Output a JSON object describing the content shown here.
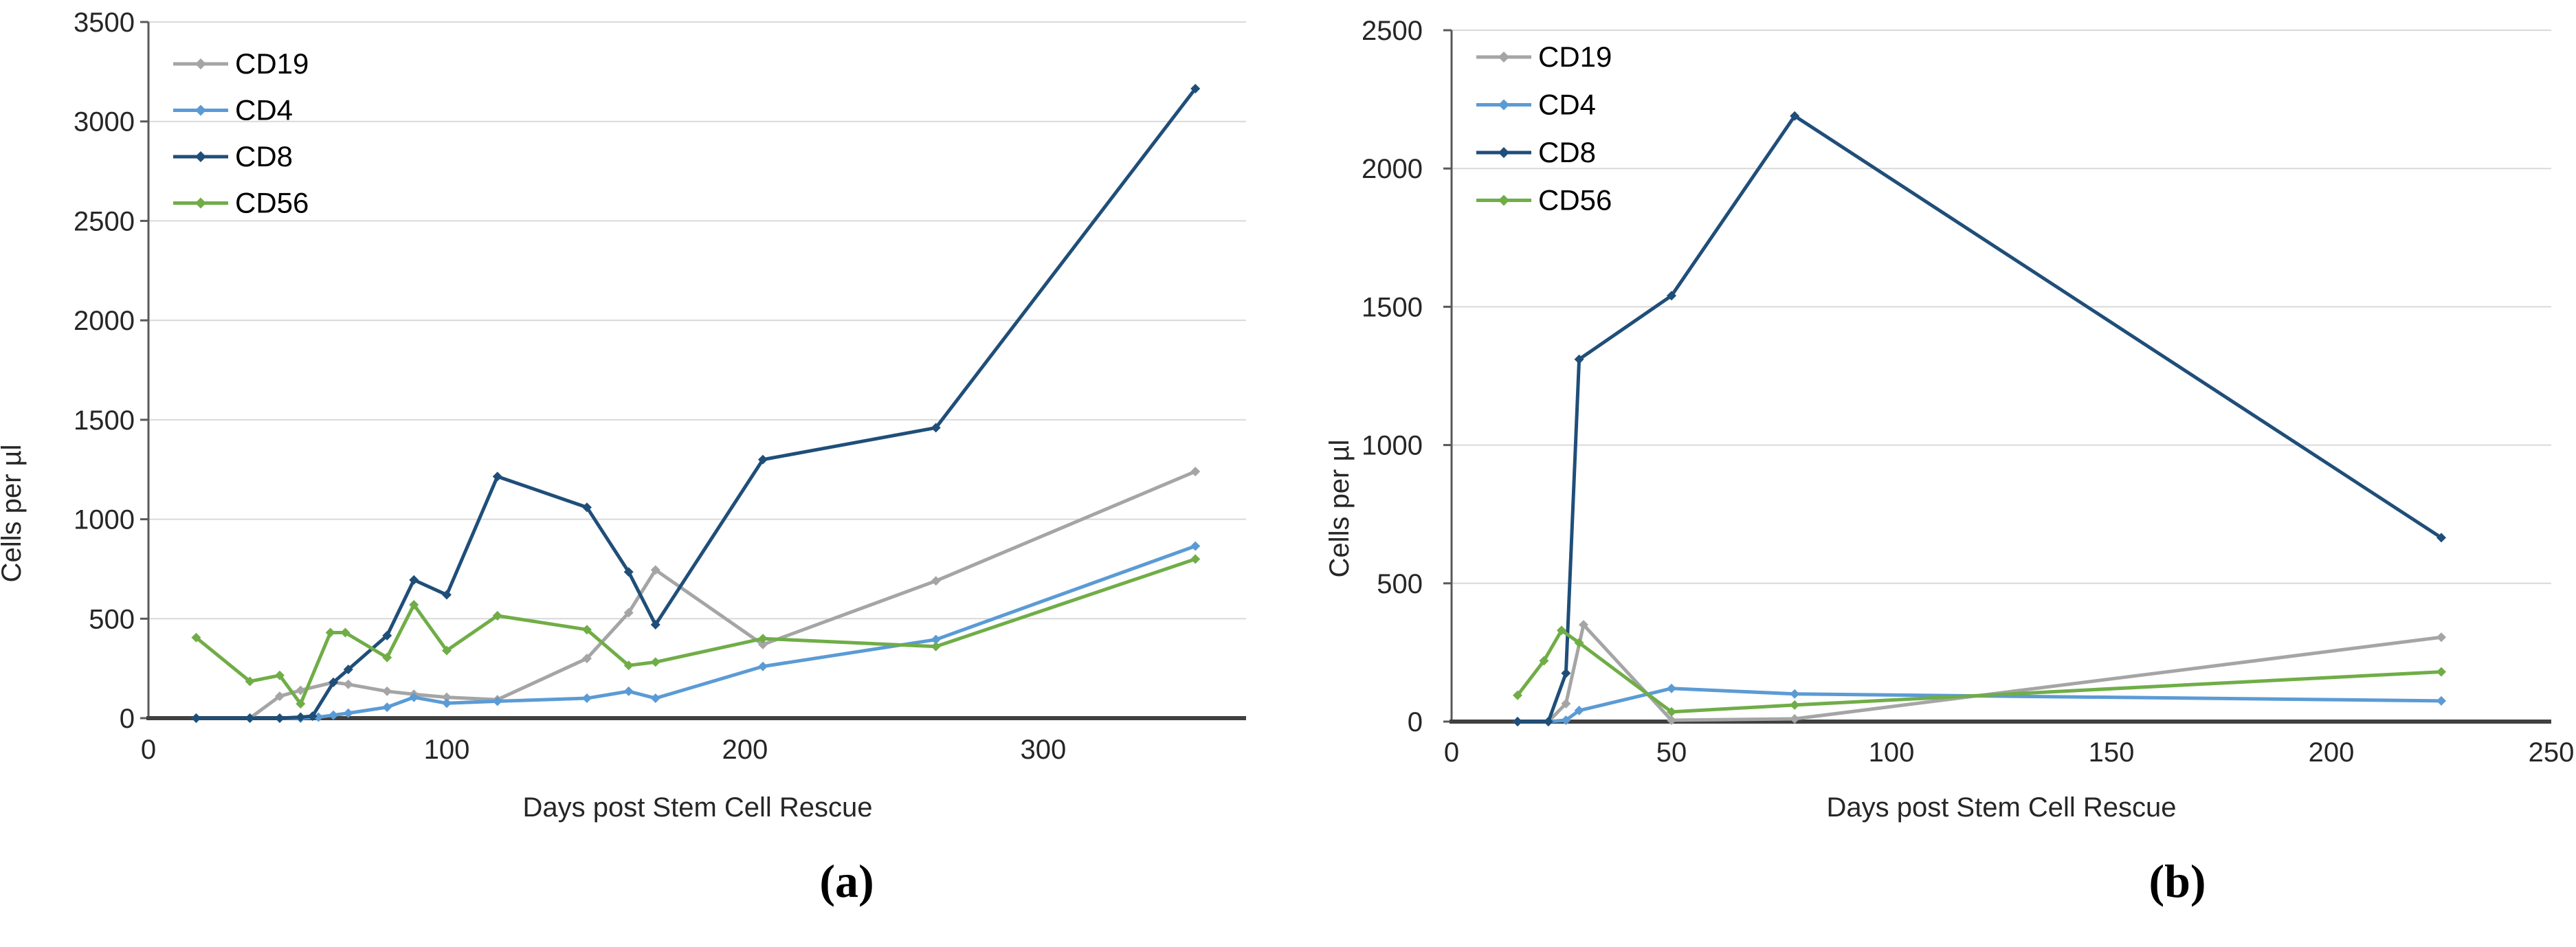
{
  "figure": {
    "background": "#ffffff",
    "text_color": "#262626",
    "gridline_color": "#d9d9d9",
    "axis_color": "#595959",
    "baseline_color": "#404040"
  },
  "chart_data": [
    {
      "id": "a",
      "type": "line",
      "caption": "(a)",
      "title": "",
      "xlabel": "Days post Stem Cell Rescue",
      "ylabel": "Cells per µl",
      "xlim": [
        0,
        368
      ],
      "ylim": [
        0,
        3500
      ],
      "x_ticks": [
        0,
        100,
        200,
        300
      ],
      "y_ticks": [
        0,
        500,
        1000,
        1500,
        2000,
        2500,
        3000,
        3500
      ],
      "grid": "horizontal",
      "legend_position": "top-left-inside",
      "legend_entries": [
        "CD19",
        "CD4",
        "CD8",
        "CD56"
      ],
      "series": [
        {
          "name": "CD19",
          "color": "#a5a5a5",
          "marker": "diamond",
          "x": [
            16,
            34,
            44,
            51,
            62,
            67,
            80,
            89,
            100,
            117,
            147,
            161,
            170,
            206,
            264,
            351
          ],
          "y": [
            0,
            0,
            110,
            140,
            180,
            170,
            135,
            120,
            105,
            93,
            300,
            530,
            745,
            370,
            690,
            1240
          ]
        },
        {
          "name": "CD4",
          "color": "#5b9bd5",
          "marker": "diamond",
          "x": [
            16,
            34,
            44,
            51,
            57,
            62,
            67,
            80,
            89,
            100,
            117,
            147,
            161,
            170,
            206,
            264,
            351
          ],
          "y": [
            0,
            0,
            0,
            0,
            5,
            15,
            25,
            55,
            105,
            75,
            85,
            100,
            135,
            100,
            260,
            395,
            865
          ]
        },
        {
          "name": "CD8",
          "color": "#1f4e79",
          "marker": "diamond",
          "x": [
            16,
            34,
            44,
            51,
            55,
            62,
            67,
            80,
            89,
            100,
            117,
            147,
            161,
            170,
            206,
            264,
            351
          ],
          "y": [
            0,
            0,
            0,
            5,
            10,
            180,
            245,
            415,
            695,
            620,
            1215,
            1060,
            735,
            470,
            1300,
            1460,
            3165
          ]
        },
        {
          "name": "CD56",
          "color": "#70ad47",
          "marker": "diamond",
          "x": [
            16,
            34,
            44,
            51,
            61,
            66,
            80,
            89,
            100,
            117,
            147,
            161,
            170,
            206,
            264,
            351
          ],
          "y": [
            405,
            185,
            215,
            72,
            430,
            430,
            305,
            570,
            340,
            515,
            445,
            265,
            282,
            400,
            360,
            800
          ]
        }
      ]
    },
    {
      "id": "b",
      "type": "line",
      "caption": "(b)",
      "title": "",
      "xlabel": "Days post Stem Cell Rescue",
      "ylabel": "Cells per µl",
      "xlim": [
        0,
        250
      ],
      "ylim": [
        0,
        2500
      ],
      "x_ticks": [
        0,
        50,
        100,
        150,
        200,
        250
      ],
      "y_ticks": [
        0,
        500,
        1000,
        1500,
        2000,
        2500
      ],
      "grid": "horizontal",
      "legend_position": "top-left-inside",
      "legend_entries": [
        "CD19",
        "CD4",
        "CD8",
        "CD56"
      ],
      "series": [
        {
          "name": "CD19",
          "color": "#a5a5a5",
          "marker": "diamond",
          "x": [
            15,
            22,
            26,
            30,
            50,
            78,
            225
          ],
          "y": [
            0,
            0,
            65,
            350,
            5,
            10,
            305
          ]
        },
        {
          "name": "CD4",
          "color": "#5b9bd5",
          "marker": "diamond",
          "x": [
            15,
            22,
            26,
            29,
            50,
            78,
            225
          ],
          "y": [
            0,
            0,
            5,
            40,
            120,
            100,
            75
          ]
        },
        {
          "name": "CD8",
          "color": "#1f4e79",
          "marker": "diamond",
          "x": [
            15,
            22,
            26,
            29,
            50,
            78,
            225
          ],
          "y": [
            0,
            0,
            175,
            1310,
            1540,
            2190,
            665
          ]
        },
        {
          "name": "CD56",
          "color": "#70ad47",
          "marker": "diamond",
          "x": [
            15,
            21,
            25,
            29,
            50,
            78,
            225
          ],
          "y": [
            95,
            220,
            330,
            285,
            35,
            60,
            180
          ]
        }
      ]
    }
  ]
}
